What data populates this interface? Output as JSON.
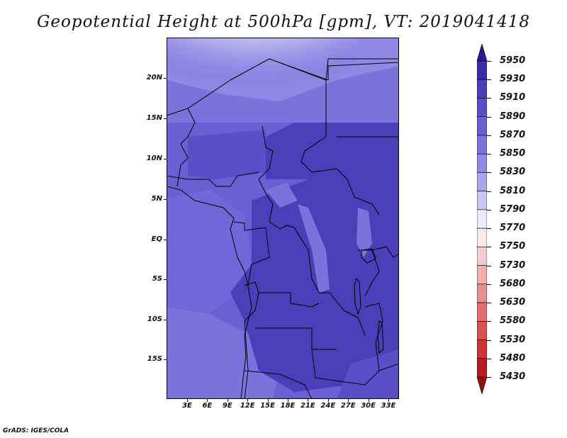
{
  "title": "Geopotential Height at 500hPa [gpm], VT: 2019041418",
  "footer": "GrADS: IGES/COLA",
  "lat_ticks": [
    "20N",
    "15N",
    "10N",
    "5N",
    "EQ",
    "5S",
    "10S",
    "15S"
  ],
  "lon_ticks": [
    "3E",
    "6E",
    "9E",
    "12E",
    "15E",
    "18E",
    "21E",
    "24E",
    "27E",
    "30E",
    "33E"
  ],
  "colorbar": {
    "levels": [
      "5950",
      "5930",
      "5910",
      "5890",
      "5870",
      "5850",
      "5830",
      "5810",
      "5790",
      "5770",
      "5750",
      "5730",
      "5680",
      "5630",
      "5580",
      "5530",
      "5480",
      "5430"
    ],
    "colors": [
      "#2b1a8f",
      "#3a2ea6",
      "#4a3fb8",
      "#5a4fc8",
      "#6a60d4",
      "#7b72dc",
      "#9088e4",
      "#aba6ec",
      "#c9c6f2",
      "#ecebfb",
      "#fbe8e8",
      "#f6cccc",
      "#f0aeae",
      "#e89090",
      "#e07070",
      "#d95252",
      "#cc3434",
      "#b31e1e",
      "#8f1010"
    ]
  },
  "map": {
    "background_color": "#6a60d4",
    "border_color": "#000000"
  }
}
